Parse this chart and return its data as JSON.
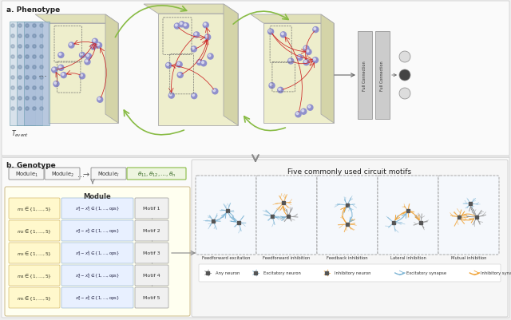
{
  "title_a": "a. Phenotype",
  "title_b": "b. Genotype",
  "motifs_title": "Five commonly used circuit motifs",
  "motif_labels": [
    "Feedforward excitation",
    "Feedforward inhibition",
    "Feedback inhibition",
    "Lateral inhibition",
    "Mutual inhibition"
  ],
  "blue_neuron": "#7ab3d4",
  "orange_neuron": "#f0a030",
  "gray_neuron": "#888888",
  "dark_gray": "#555555",
  "bg_outer": "#eeeeee",
  "panel_a_bg": "#fafafa",
  "panel_b_bg": "#fafafa",
  "cube_face": "#eeeecc",
  "cube_top": "#e0e0b8",
  "cube_right": "#d4d4a8",
  "layer_colors": [
    "#d0dce8",
    "#bccce0",
    "#a8bcd8"
  ],
  "dot_color": "#446688",
  "arrow_green": "#88bb44",
  "fc_color": "#cccccc",
  "module_bg": "#fffff0",
  "module_border": "#ccbb88",
  "row_left_bg": "#fff8cc",
  "row_mid_bg": "#e8f0ff",
  "motif_bg": "#f5f8fc",
  "legend_bg": "#ffffff"
}
